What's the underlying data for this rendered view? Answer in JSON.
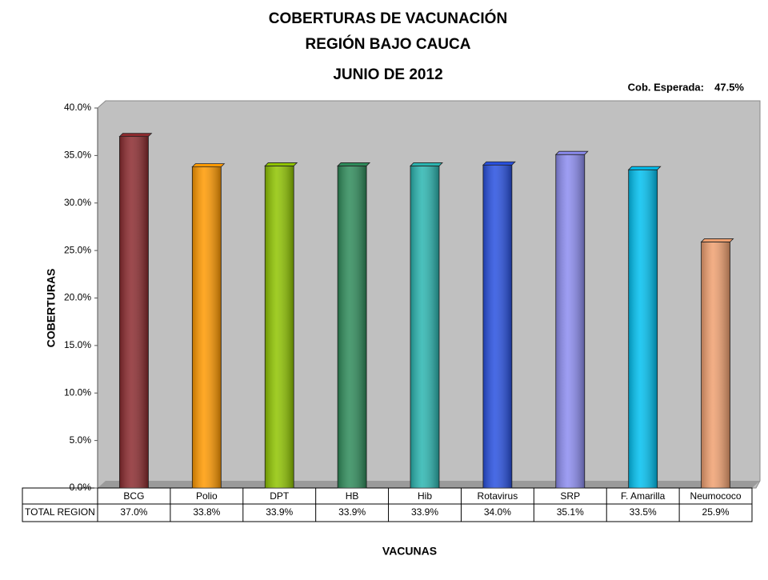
{
  "chart_data": {
    "type": "bar",
    "title": [
      "COBERTURAS DE VACUNACIÓN",
      "REGIÓN BAJO CAUCA",
      "JUNIO DE 2012"
    ],
    "annotation": {
      "label": "Cob. Esperada:",
      "value": 47.5,
      "value_label": "47.5%"
    },
    "y_axis_label": "COBERTURAS",
    "x_axis_label": "VACUNAS",
    "table_row_label": "TOTAL REGION",
    "categories": [
      "BCG",
      "Polio",
      "DPT",
      "HB",
      "Hib",
      "Rotavirus",
      "SRP",
      "F. Amarilla",
      "Neumococo"
    ],
    "values": [
      37.0,
      33.8,
      33.9,
      33.9,
      33.9,
      34.0,
      35.1,
      33.5,
      25.9
    ],
    "value_labels": [
      "37.0%",
      "33.8%",
      "33.9%",
      "33.9%",
      "33.9%",
      "34.0%",
      "35.1%",
      "33.5%",
      "25.9%"
    ],
    "colors": [
      "#8b2a2e",
      "#ff9900",
      "#8fc400",
      "#2e8b5a",
      "#2ab5b0",
      "#2850e0",
      "#8c8cf0",
      "#00c0f0",
      "#f0a070"
    ],
    "ylim": [
      0,
      40
    ],
    "yticks": [
      {
        "value": 0,
        "label": "0.0%"
      },
      {
        "value": 5,
        "label": "5.0%"
      },
      {
        "value": 10,
        "label": "10.0%"
      },
      {
        "value": 15,
        "label": "15.0%"
      },
      {
        "value": 20,
        "label": "20.0%"
      },
      {
        "value": 25,
        "label": "25.0%"
      },
      {
        "value": 30,
        "label": "30.0%"
      },
      {
        "value": 35,
        "label": "35.0%"
      },
      {
        "value": 40,
        "label": "40.0%"
      }
    ],
    "grid": false
  }
}
